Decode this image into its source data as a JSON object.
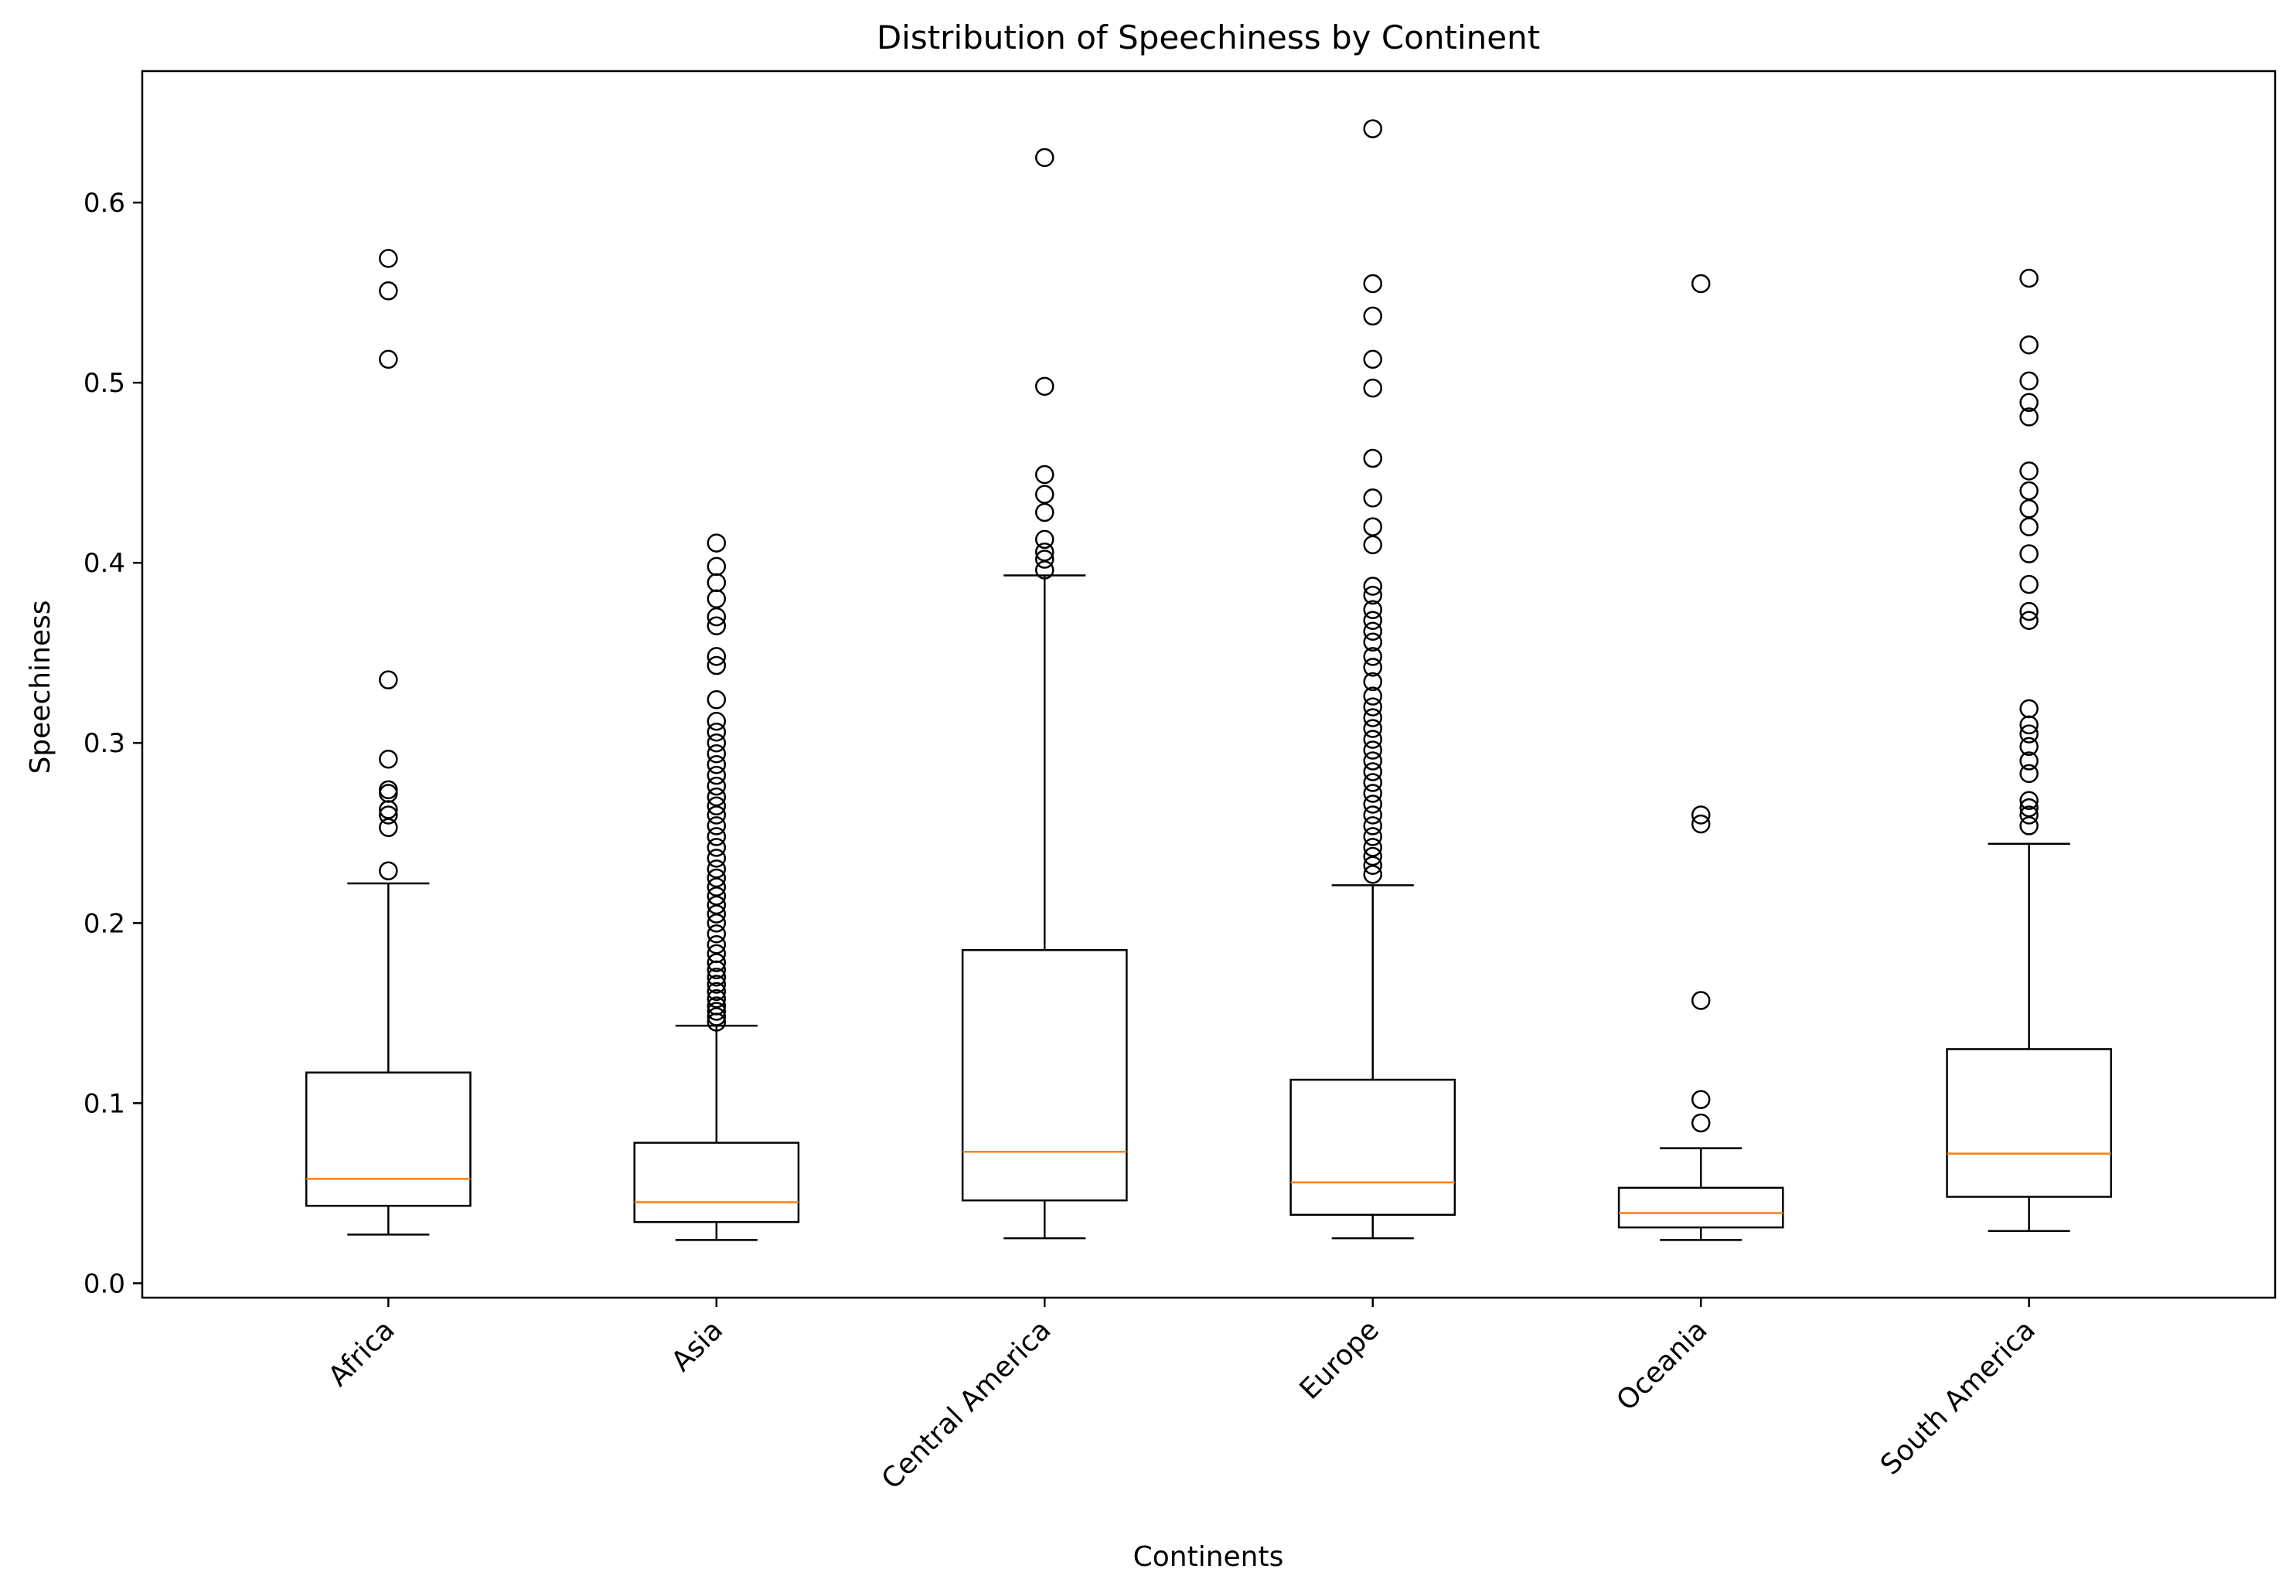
{
  "chart_data": {
    "type": "box",
    "title": "Distribution of Speechiness by Continent",
    "xlabel": "Continents",
    "ylabel": "Speechiness",
    "categories": [
      "Africa",
      "Asia",
      "Central America",
      "Europe",
      "Oceania",
      "South America"
    ],
    "ylim": [
      -0.008,
      0.673
    ],
    "yticks": [
      0.0,
      0.1,
      0.2,
      0.3,
      0.4,
      0.5,
      0.6
    ],
    "ytick_labels": [
      "0.0",
      "0.1",
      "0.2",
      "0.3",
      "0.4",
      "0.5",
      "0.6"
    ],
    "grid": false,
    "x_tick_rotation": 45,
    "colors": {
      "box": "#000000",
      "median": "#ff7f0e",
      "outlier": "#000000"
    },
    "boxes": [
      {
        "category": "Africa",
        "whisker_low": 0.027,
        "q1": 0.043,
        "median": 0.058,
        "q3": 0.117,
        "whisker_high": 0.222,
        "outliers": [
          0.229,
          0.253,
          0.26,
          0.263,
          0.272,
          0.274,
          0.291,
          0.335,
          0.513,
          0.551,
          0.569
        ]
      },
      {
        "category": "Asia",
        "whisker_low": 0.024,
        "q1": 0.034,
        "median": 0.045,
        "q3": 0.078,
        "whisker_high": 0.143,
        "outliers": [
          0.145,
          0.148,
          0.151,
          0.154,
          0.158,
          0.162,
          0.166,
          0.17,
          0.174,
          0.178,
          0.183,
          0.188,
          0.194,
          0.2,
          0.205,
          0.21,
          0.215,
          0.22,
          0.225,
          0.23,
          0.236,
          0.242,
          0.248,
          0.254,
          0.26,
          0.265,
          0.27,
          0.276,
          0.282,
          0.288,
          0.294,
          0.3,
          0.306,
          0.312,
          0.324,
          0.343,
          0.348,
          0.365,
          0.37,
          0.38,
          0.389,
          0.398,
          0.411
        ]
      },
      {
        "category": "Central America",
        "whisker_low": 0.025,
        "q1": 0.046,
        "median": 0.073,
        "q3": 0.185,
        "whisker_high": 0.393,
        "outliers": [
          0.396,
          0.402,
          0.406,
          0.413,
          0.428,
          0.438,
          0.449,
          0.498,
          0.625
        ]
      },
      {
        "category": "Europe",
        "whisker_low": 0.025,
        "q1": 0.038,
        "median": 0.056,
        "q3": 0.113,
        "whisker_high": 0.221,
        "outliers": [
          0.227,
          0.232,
          0.237,
          0.242,
          0.248,
          0.254,
          0.26,
          0.266,
          0.272,
          0.278,
          0.284,
          0.29,
          0.296,
          0.302,
          0.308,
          0.314,
          0.32,
          0.326,
          0.334,
          0.342,
          0.348,
          0.356,
          0.362,
          0.368,
          0.374,
          0.382,
          0.387,
          0.41,
          0.42,
          0.436,
          0.458,
          0.497,
          0.513,
          0.537,
          0.555,
          0.641
        ]
      },
      {
        "category": "Oceania",
        "whisker_low": 0.024,
        "q1": 0.031,
        "median": 0.039,
        "q3": 0.053,
        "whisker_high": 0.075,
        "outliers": [
          0.089,
          0.102,
          0.157,
          0.255,
          0.26,
          0.555
        ]
      },
      {
        "category": "South America",
        "whisker_low": 0.029,
        "q1": 0.048,
        "median": 0.072,
        "q3": 0.13,
        "whisker_high": 0.244,
        "outliers": [
          0.254,
          0.26,
          0.264,
          0.268,
          0.283,
          0.29,
          0.298,
          0.305,
          0.31,
          0.319,
          0.368,
          0.373,
          0.388,
          0.405,
          0.42,
          0.43,
          0.44,
          0.451,
          0.481,
          0.489,
          0.501,
          0.521,
          0.558
        ]
      }
    ]
  }
}
